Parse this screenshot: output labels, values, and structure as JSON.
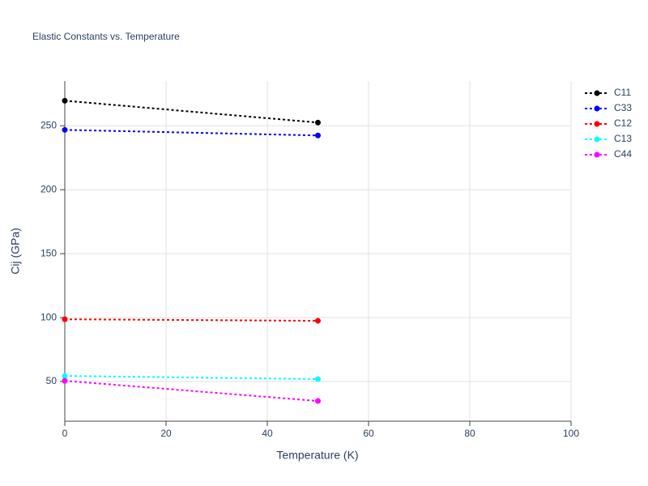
{
  "chart_data": {
    "type": "line",
    "title": "Elastic Constants vs. Temperature",
    "x_label": "Temperature (K)",
    "y_label": "Cij (GPa)",
    "x": [
      0,
      50
    ],
    "series": [
      {
        "name": "C11",
        "color": "#000000",
        "values": [
          269.6,
          252.5
        ]
      },
      {
        "name": "C33",
        "color": "#0000ff",
        "values": [
          246.8,
          242.4
        ]
      },
      {
        "name": "C12",
        "color": "#ff0000",
        "values": [
          98.7,
          97.5
        ]
      },
      {
        "name": "C13",
        "color": "#00ffff",
        "values": [
          54.4,
          51.9
        ]
      },
      {
        "name": "C44",
        "color": "#ff00ff",
        "values": [
          50.6,
          34.8
        ]
      }
    ],
    "xlim": [
      0,
      100
    ],
    "xticks": [
      0,
      20,
      40,
      60,
      80,
      100
    ],
    "ylim": [
      19,
      285
    ],
    "yticks": [
      50,
      100,
      150,
      200,
      250
    ],
    "grid": true,
    "legend": "top-right"
  }
}
